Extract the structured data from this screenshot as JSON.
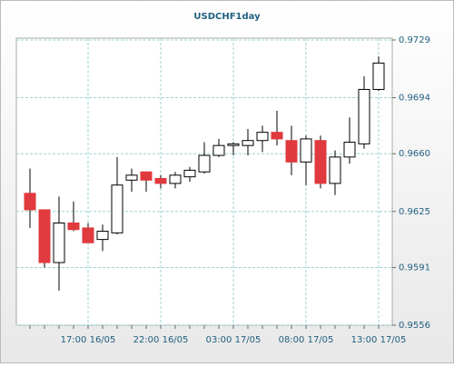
{
  "chart_data": {
    "type": "candlestick",
    "title": "USDCHF1day",
    "categories": [
      null,
      null,
      null,
      null,
      "17:00 16/05",
      null,
      null,
      null,
      null,
      "22:00 16/05",
      null,
      null,
      null,
      null,
      "03:00 17/05",
      null,
      null,
      null,
      null,
      "08:00 17/05",
      null,
      null,
      null,
      null,
      "13:00 17/05"
    ],
    "open": [
      0.9636,
      0.9626,
      0.9594,
      0.9618,
      0.9615,
      0.9608,
      0.9612,
      0.9644,
      0.9649,
      0.9645,
      0.9642,
      0.9646,
      0.9649,
      0.9659,
      0.9665,
      0.9665,
      0.9668,
      0.9673,
      0.9668,
      0.9655,
      0.9668,
      0.9642,
      0.9658,
      0.9666,
      0.9699
    ],
    "high": [
      0.9651,
      0.9626,
      0.9634,
      0.9631,
      0.9618,
      0.9617,
      0.9658,
      0.9651,
      0.9649,
      0.9647,
      0.9649,
      0.9652,
      0.9667,
      0.9669,
      0.9667,
      0.9675,
      0.9677,
      0.9686,
      0.9677,
      0.9671,
      0.9671,
      0.9662,
      0.9682,
      0.9707,
      0.9719
    ],
    "low": [
      0.9615,
      0.9591,
      0.9577,
      0.9613,
      0.9606,
      0.9601,
      0.9611,
      0.9637,
      0.9637,
      0.9639,
      0.9639,
      0.9643,
      0.9648,
      0.9658,
      0.9659,
      0.9659,
      0.9661,
      0.9665,
      0.9647,
      0.9641,
      0.9639,
      0.9635,
      0.9654,
      0.9663,
      0.9698
    ],
    "close": [
      0.9626,
      0.9594,
      0.9618,
      0.9614,
      0.9606,
      0.9613,
      0.9641,
      0.9647,
      0.9644,
      0.9642,
      0.9647,
      0.965,
      0.9659,
      0.9665,
      0.9666,
      0.9668,
      0.9673,
      0.9669,
      0.9655,
      0.9669,
      0.9642,
      0.9658,
      0.9667,
      0.9699,
      0.9715
    ],
    "up_color": "#ffffff",
    "down_color": "#e0393e",
    "ylim": [
      0.9556,
      0.9729
    ],
    "yticks": [
      0.9556,
      0.9591,
      0.9625,
      {
        "value": 0.966,
        "label": "0.9660"
      },
      0.9694,
      0.9729
    ],
    "grid": true
  }
}
